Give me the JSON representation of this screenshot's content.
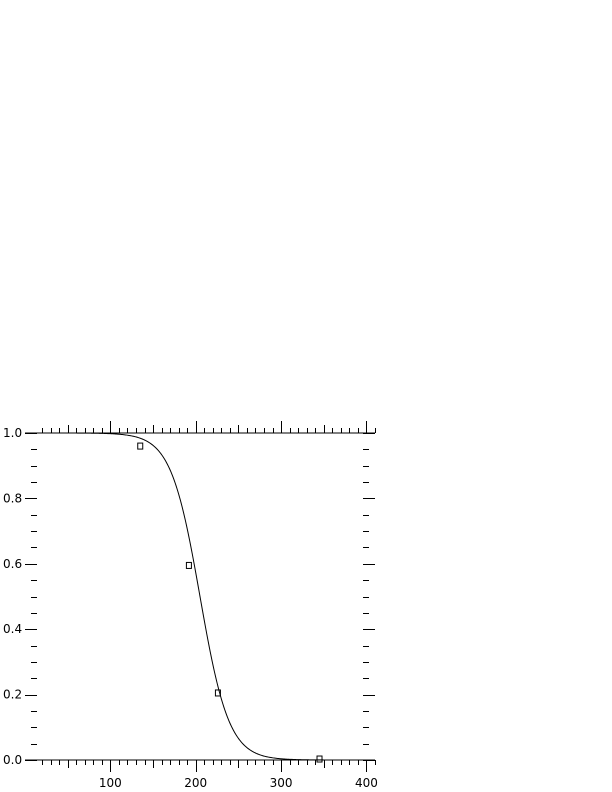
{
  "chart_data": {
    "type": "scatter",
    "title": "",
    "xlabel": "",
    "ylabel": "",
    "xlim": [
      0,
      410
    ],
    "ylim": [
      0,
      1
    ],
    "grid": false,
    "x_tick_labels": [
      "100",
      "200",
      "300",
      "400"
    ],
    "x_ticks": [
      100,
      200,
      300,
      400
    ],
    "y_tick_labels": [
      "0.0",
      "0.2",
      "0.4",
      "0.6",
      "0.8",
      "1.0"
    ],
    "y_ticks": [
      0,
      0.2,
      0.4,
      0.6,
      0.8,
      1.0
    ],
    "x_minor_step": 10,
    "y_minor_step": 0.05,
    "series": [
      {
        "kind": "points",
        "marker": "square",
        "x": [
          135,
          192,
          226,
          345
        ],
        "y": [
          0.96,
          0.595,
          0.205,
          0.003
        ]
      },
      {
        "kind": "fitted-line",
        "model": "logistic-decreasing",
        "midpoint": 205,
        "scale": 17,
        "x_range": [
          0,
          410
        ]
      }
    ],
    "colors": {
      "line": "#000000",
      "marker": "#000000",
      "axes": "#000000"
    }
  }
}
